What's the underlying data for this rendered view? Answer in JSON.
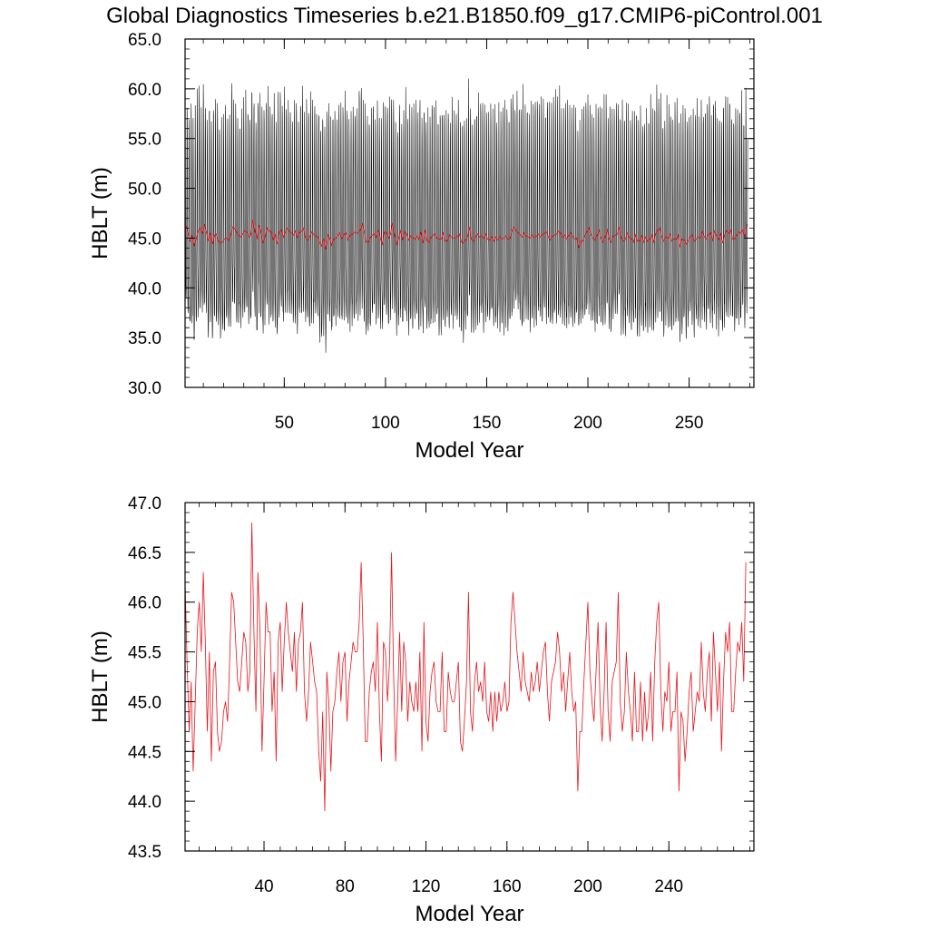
{
  "title": "Global Diagnostics Timeseries b.e21.B1850.f09_g17.CMIP6-piControl.001",
  "colors": {
    "axis": "#000000",
    "monthly": "#000000",
    "annual": "#e8141b",
    "background": "#ffffff"
  },
  "chart_data": [
    {
      "type": "line",
      "name": "top-panel",
      "title": "",
      "xlabel": "Model Year",
      "ylabel": "HBLT (m)",
      "xlim": [
        1,
        282
      ],
      "ylim": [
        30,
        65
      ],
      "xticks": [
        50,
        100,
        150,
        200,
        250
      ],
      "xtick_labels": [
        "50",
        "100",
        "150",
        "200",
        "250"
      ],
      "yticks": [
        30,
        35,
        40,
        45,
        50,
        55,
        60,
        65
      ],
      "ytick_labels": [
        "30.0",
        "35.0",
        "40.0",
        "45.0",
        "50.0",
        "55.0",
        "60.0",
        "65.0"
      ],
      "series": [
        {
          "name": "monthly",
          "color": "#000000",
          "description": "monthly HBLT oscillating ~36 to ~58 m each year",
          "monthly_climatology": [
            58.0,
            56.5,
            49.0,
            42.0,
            39.5,
            37.5,
            36.8,
            37.5,
            39.5,
            42.5,
            46.5,
            52.5
          ]
        },
        {
          "name": "annual",
          "color": "#e8141b",
          "ref": "bottom-panel.values"
        }
      ]
    },
    {
      "type": "line",
      "name": "bottom-panel",
      "title": "",
      "xlabel": "Model Year",
      "ylabel": "HBLT (m)",
      "xlim": [
        1,
        282
      ],
      "ylim": [
        43.5,
        47.0
      ],
      "xticks": [
        40,
        80,
        120,
        160,
        200,
        240
      ],
      "xtick_labels": [
        "40",
        "80",
        "120",
        "160",
        "200",
        "240"
      ],
      "yticks": [
        43.5,
        44.0,
        44.5,
        45.0,
        45.5,
        46.0,
        46.5,
        47.0
      ],
      "ytick_labels": [
        "43.5",
        "44.0",
        "44.5",
        "45.0",
        "45.5",
        "46.0",
        "46.5",
        "47.0"
      ],
      "x_start": 1,
      "series_name": "annual",
      "color": "#e8141b",
      "values": [
        46.2,
        45.4,
        44.7,
        45.2,
        44.3,
        45.0,
        45.7,
        46.0,
        45.5,
        46.3,
        45.6,
        44.7,
        45.5,
        44.4,
        45.3,
        45.4,
        44.7,
        44.5,
        44.6,
        44.9,
        45.0,
        44.8,
        45.4,
        46.1,
        46.0,
        45.6,
        45.2,
        45.1,
        45.4,
        45.7,
        45.6,
        45.1,
        45.3,
        46.8,
        45.7,
        44.9,
        46.3,
        45.7,
        44.5,
        45.2,
        46.0,
        45.7,
        45.7,
        44.9,
        45.3,
        44.4,
        45.6,
        45.8,
        45.1,
        45.6,
        46.0,
        45.7,
        45.5,
        45.3,
        45.7,
        45.1,
        45.6,
        45.7,
        46.0,
        45.1,
        44.8,
        45.1,
        45.6,
        45.4,
        45.2,
        45.1,
        44.5,
        44.2,
        44.9,
        43.9,
        45.3,
        45.0,
        44.3,
        44.9,
        45.0,
        45.3,
        45.5,
        45.0,
        45.4,
        45.5,
        44.8,
        45.2,
        45.4,
        45.6,
        45.5,
        45.5,
        45.8,
        46.4,
        45.6,
        44.6,
        44.6,
        45.1,
        45.3,
        45.4,
        45.1,
        45.8,
        44.9,
        44.4,
        45.6,
        45.5,
        45.0,
        45.4,
        46.5,
        45.3,
        44.4,
        45.0,
        45.7,
        44.9,
        45.6,
        45.4,
        44.8,
        45.2,
        45.0,
        44.9,
        45.2,
        44.9,
        45.5,
        44.5,
        45.8,
        44.8,
        44.6,
        45.1,
        45.3,
        45.4,
        45.0,
        44.9,
        44.9,
        45.5,
        44.7,
        44.7,
        45.3,
        45.1,
        45.0,
        45.0,
        45.2,
        45.4,
        44.6,
        44.5,
        44.8,
        45.2,
        46.1,
        44.9,
        44.7,
        45.2,
        45.4,
        45.1,
        45.2,
        45.0,
        45.4,
        44.9,
        44.8,
        45.1,
        44.7,
        45.1,
        44.8,
        45.1,
        44.9,
        45.0,
        45.2,
        44.9,
        45.0,
        45.8,
        46.1,
        45.8,
        45.5,
        45.3,
        45.1,
        45.5,
        45.2,
        45.1,
        45.0,
        45.3,
        45.1,
        45.2,
        45.4,
        45.1,
        45.3,
        45.5,
        45.6,
        45.1,
        44.8,
        45.2,
        45.3,
        45.4,
        45.7,
        45.5,
        45.1,
        45.3,
        44.9,
        45.2,
        45.5,
        45.1,
        44.9,
        45.0,
        44.1,
        44.7,
        44.7,
        45.2,
        45.6,
        46.0,
        45.3,
        45.0,
        44.8,
        45.3,
        45.8,
        45.0,
        44.6,
        45.1,
        45.8,
        44.9,
        44.6,
        45.2,
        45.3,
        45.4,
        46.1,
        45.0,
        44.7,
        44.9,
        45.5,
        45.1,
        44.9,
        44.6,
        45.3,
        44.7,
        44.7,
        45.2,
        44.6,
        45.1,
        44.7,
        44.9,
        45.3,
        44.6,
        45.4,
        45.8,
        46.0,
        45.1,
        44.7,
        45.1,
        45.0,
        45.4,
        44.7,
        44.9,
        44.9,
        45.3,
        44.1,
        44.9,
        44.8,
        44.4,
        44.7,
        45.1,
        45.3,
        44.7,
        44.9,
        45.1,
        45.0,
        45.6,
        45.1,
        44.9,
        45.3,
        45.5,
        44.8,
        45.7,
        45.3,
        44.9,
        45.4,
        44.5,
        45.2,
        45.7,
        45.5,
        45.8,
        44.9,
        44.9,
        45.3,
        45.6,
        45.5,
        45.8,
        45.2,
        46.4
      ]
    }
  ]
}
